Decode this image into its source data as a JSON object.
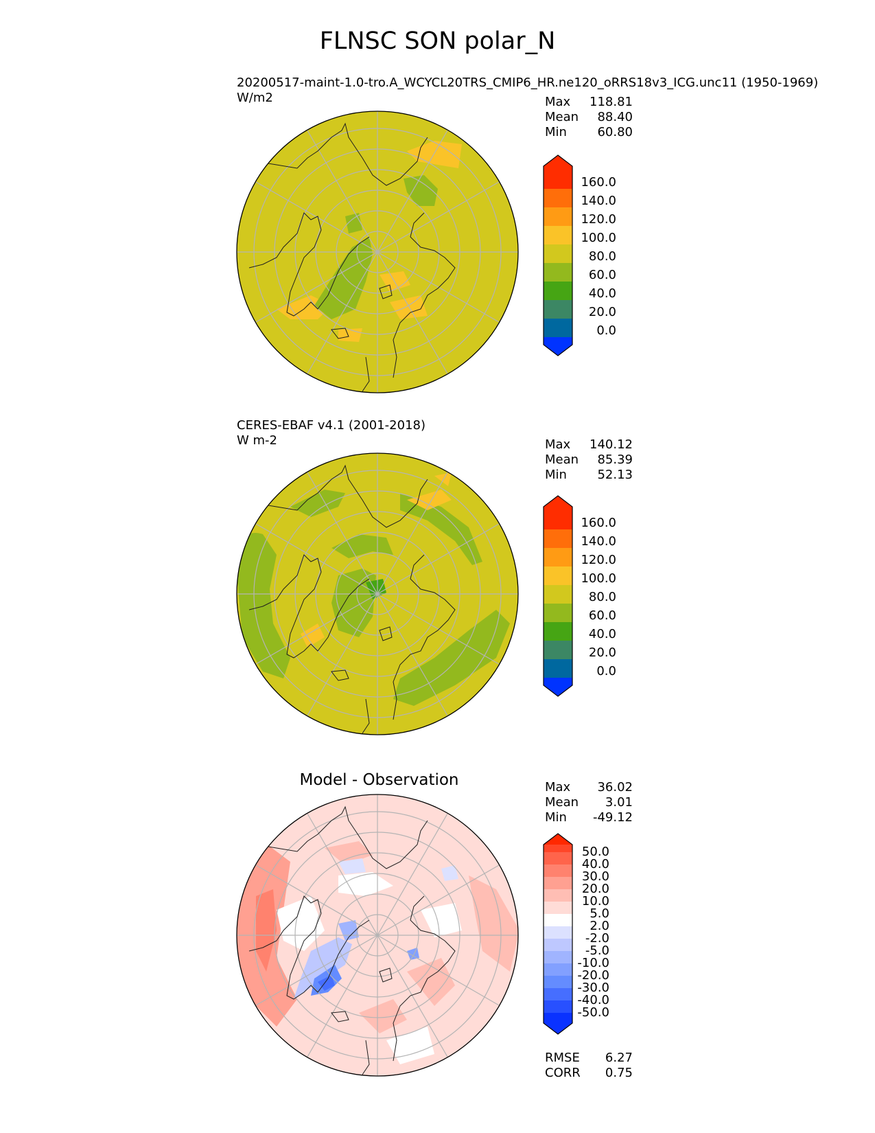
{
  "figure": {
    "title": "FLNSC SON polar_N"
  },
  "panels": [
    {
      "id": "test",
      "title": "20200517-maint-1.0-tro.A_WCYCL20TRS_CMIP6_HR.ne120_oRRS18v3_ICG.unc11 (1950-1969)",
      "units": "W/m2",
      "stats": [
        {
          "label": "Max",
          "value": "118.81"
        },
        {
          "label": "Mean",
          "value": "88.40"
        },
        {
          "label": "Min",
          "value": "60.80"
        }
      ],
      "colorbar": {
        "ticks": [
          "160.0",
          "140.0",
          "120.0",
          "100.0",
          "80.0",
          "60.0",
          "40.0",
          "20.0",
          "0.0"
        ],
        "colors": [
          "#0033ff",
          "#00689f",
          "#3c8764",
          "#46a514",
          "#93b91e",
          "#d2c81e",
          "#fac328",
          "#ff9b14",
          "#ff6e0a",
          "#ff2d00"
        ]
      }
    },
    {
      "id": "reference",
      "title": "CERES-EBAF v4.1 (2001-2018)",
      "units": "W m-2",
      "stats": [
        {
          "label": "Max",
          "value": "140.12"
        },
        {
          "label": "Mean",
          "value": "85.39"
        },
        {
          "label": "Min",
          "value": "52.13"
        }
      ],
      "colorbar": {
        "ticks": [
          "160.0",
          "140.0",
          "120.0",
          "100.0",
          "80.0",
          "60.0",
          "40.0",
          "20.0",
          "0.0"
        ],
        "colors": [
          "#0033ff",
          "#00689f",
          "#3c8764",
          "#46a514",
          "#93b91e",
          "#d2c81e",
          "#fac328",
          "#ff9b14",
          "#ff6e0a",
          "#ff2d00"
        ]
      }
    },
    {
      "id": "diff",
      "title": "Model - Observation",
      "stats": [
        {
          "label": "Max",
          "value": "36.02"
        },
        {
          "label": "Mean",
          "value": "3.01"
        },
        {
          "label": "Min",
          "value": "-49.12"
        }
      ],
      "colorbar": {
        "ticks": [
          "50.0",
          "40.0",
          "30.0",
          "20.0",
          "10.0",
          "5.0",
          "2.0",
          "-2.0",
          "-5.0",
          "-10.0",
          "-20.0",
          "-30.0",
          "-40.0",
          "-50.0"
        ],
        "colors": [
          "#0a32ff",
          "#2850ff",
          "#466eff",
          "#648cff",
          "#82a0ff",
          "#a0b4ff",
          "#bec8ff",
          "#dce1ff",
          "#ffffff",
          "#ffdcd7",
          "#ffbeb4",
          "#ffa091",
          "#ff826e",
          "#ff644b",
          "#ff4628",
          "#ff2800"
        ]
      },
      "metrics": [
        {
          "label": "RMSE",
          "value": "6.27"
        },
        {
          "label": "CORR",
          "value": "0.75"
        }
      ]
    }
  ]
}
